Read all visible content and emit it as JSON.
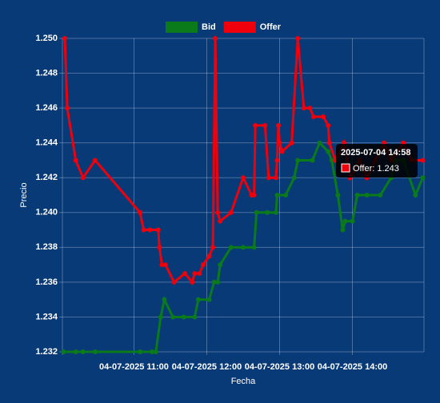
{
  "chart_data": {
    "type": "line",
    "x_label": "Fecha",
    "y_label": "Precio",
    "xlim": [
      "2025-07-04 10:01",
      "2025-07-04 14:59"
    ],
    "xticks": [
      {
        "value": "2025-07-04 11:00",
        "label": "04-07-2025 11:00"
      },
      {
        "value": "2025-07-04 12:00",
        "label": "04-07-2025 12:00"
      },
      {
        "value": "2025-07-04 13:00",
        "label": "04-07-2025 13:00"
      },
      {
        "value": "2025-07-04 14:00",
        "label": "04-07-2025 14:00"
      }
    ],
    "ylim": [
      1.232,
      1.25
    ],
    "yticks": [
      1.232,
      1.234,
      1.236,
      1.238,
      {
        "value": 1.24,
        "label": "1.240"
      },
      1.242,
      1.244,
      1.246,
      1.248,
      {
        "value": 1.25,
        "label": "1.250"
      }
    ],
    "grid": true,
    "legend": "top",
    "series": [
      {
        "name": "Bid",
        "color": "#0a7a1a",
        "x": [
          "2025-07-04 10:02",
          "2025-07-04 10:12",
          "2025-07-04 10:18",
          "2025-07-04 10:28",
          "2025-07-04 11:05",
          "2025-07-04 11:15",
          "2025-07-04 11:18",
          "2025-07-04 11:22",
          "2025-07-04 11:25",
          "2025-07-04 11:32",
          "2025-07-04 11:41",
          "2025-07-04 11:50",
          "2025-07-04 11:53",
          "2025-07-04 12:02",
          "2025-07-04 12:06",
          "2025-07-04 12:09",
          "2025-07-04 12:11",
          "2025-07-04 12:20",
          "2025-07-04 12:30",
          "2025-07-04 12:39",
          "2025-07-04 12:41",
          "2025-07-04 12:50",
          "2025-07-04 12:57",
          "2025-07-04 12:58",
          "2025-07-04 13:05",
          "2025-07-04 13:12",
          "2025-07-04 13:15",
          "2025-07-04 13:27",
          "2025-07-04 13:33",
          "2025-07-04 13:40",
          "2025-07-04 13:43",
          "2025-07-04 13:48",
          "2025-07-04 13:52",
          "2025-07-04 13:54",
          "2025-07-04 14:00",
          "2025-07-04 14:04",
          "2025-07-04 14:12",
          "2025-07-04 14:23",
          "2025-07-04 14:32",
          "2025-07-04 14:35",
          "2025-07-04 14:42",
          "2025-07-04 14:52",
          "2025-07-04 14:58"
        ],
        "values": [
          1.232,
          1.232,
          1.232,
          1.232,
          1.232,
          1.232,
          1.232,
          1.234,
          1.235,
          1.234,
          1.234,
          1.234,
          1.235,
          1.235,
          1.236,
          1.236,
          1.237,
          1.238,
          1.238,
          1.238,
          1.24,
          1.24,
          1.24,
          1.241,
          1.241,
          1.242,
          1.243,
          1.243,
          1.244,
          1.2435,
          1.243,
          1.241,
          1.239,
          1.2395,
          1.2395,
          1.241,
          1.241,
          1.241,
          1.242,
          1.243,
          1.243,
          1.241,
          1.242
        ]
      },
      {
        "name": "Offer",
        "color": "#f0000a",
        "x": [
          "2025-07-04 10:03",
          "2025-07-04 10:05",
          "2025-07-04 10:12",
          "2025-07-04 10:18",
          "2025-07-04 10:28",
          "2025-07-04 11:05",
          "2025-07-04 11:08",
          "2025-07-04 11:13",
          "2025-07-04 11:20",
          "2025-07-04 11:21",
          "2025-07-04 11:23",
          "2025-07-04 11:26",
          "2025-07-04 11:33",
          "2025-07-04 11:42",
          "2025-07-04 11:48",
          "2025-07-04 11:50",
          "2025-07-04 11:54",
          "2025-07-04 11:57",
          "2025-07-04 12:02",
          "2025-07-04 12:05",
          "2025-07-04 12:07",
          "2025-07-04 12:09",
          "2025-07-04 12:11",
          "2025-07-04 12:20",
          "2025-07-04 12:30",
          "2025-07-04 12:37",
          "2025-07-04 12:39",
          "2025-07-04 12:40",
          "2025-07-04 12:48",
          "2025-07-04 12:51",
          "2025-07-04 12:57",
          "2025-07-04 12:58",
          "2025-07-04 12:59",
          "2025-07-04 13:00",
          "2025-07-04 13:02",
          "2025-07-04 13:10",
          "2025-07-04 13:15",
          "2025-07-04 13:20",
          "2025-07-04 13:25",
          "2025-07-04 13:28",
          "2025-07-04 13:36",
          "2025-07-04 13:40",
          "2025-07-04 13:41",
          "2025-07-04 13:46",
          "2025-07-04 13:53",
          "2025-07-04 13:58",
          "2025-07-04 14:06",
          "2025-07-04 14:12",
          "2025-07-04 14:19",
          "2025-07-04 14:26",
          "2025-07-04 14:32",
          "2025-07-04 14:42",
          "2025-07-04 14:49",
          "2025-07-04 14:58"
        ],
        "values": [
          1.25,
          1.246,
          1.243,
          1.242,
          1.243,
          1.24,
          1.239,
          1.239,
          1.239,
          1.238,
          1.237,
          1.237,
          1.236,
          1.2365,
          1.236,
          1.2365,
          1.2365,
          1.237,
          1.2375,
          1.238,
          1.25,
          1.24,
          1.2395,
          1.24,
          1.242,
          1.241,
          1.241,
          1.245,
          1.245,
          1.242,
          1.242,
          1.243,
          1.245,
          1.244,
          1.2435,
          1.244,
          1.25,
          1.246,
          1.246,
          1.2455,
          1.2455,
          1.245,
          1.244,
          1.243,
          1.244,
          1.242,
          1.243,
          1.242,
          1.243,
          1.244,
          1.243,
          1.244,
          1.243,
          1.243
        ]
      }
    ],
    "tooltip": {
      "title": "2025-07-04 14:58",
      "label": "Offer: 1.243"
    }
  }
}
